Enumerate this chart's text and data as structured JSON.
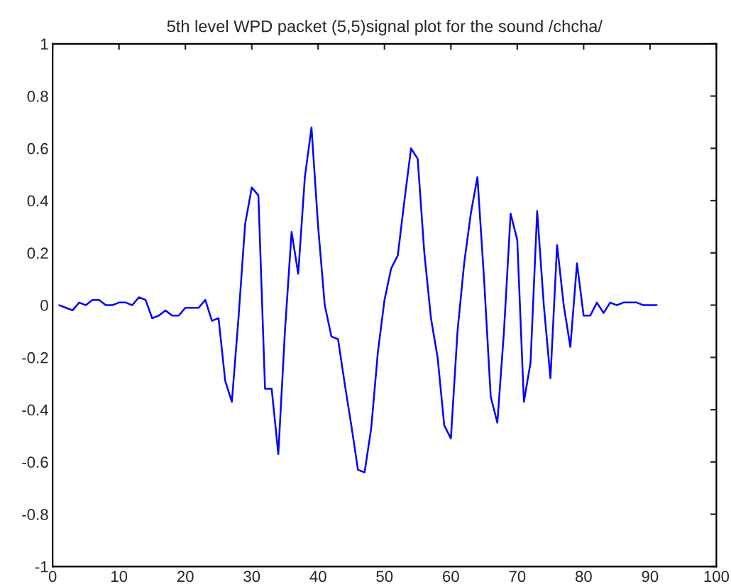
{
  "chart_data": {
    "type": "line",
    "title": "5th level WPD packet (5,5)signal plot for the sound /chcha/",
    "x": [
      1,
      2,
      3,
      4,
      5,
      6,
      7,
      8,
      9,
      10,
      11,
      12,
      13,
      14,
      15,
      16,
      17,
      18,
      19,
      20,
      21,
      22,
      23,
      24,
      25,
      26,
      27,
      28,
      29,
      30,
      31,
      32,
      33,
      34,
      35,
      36,
      37,
      38,
      39,
      40,
      41,
      42,
      43,
      44,
      45,
      46,
      47,
      48,
      49,
      50,
      51,
      52,
      53,
      54,
      55,
      56,
      57,
      58,
      59,
      60,
      61,
      62,
      63,
      64,
      65,
      66,
      67,
      68,
      69,
      70,
      71,
      72,
      73,
      74,
      75,
      76,
      77,
      78,
      79,
      80,
      81,
      82,
      83,
      84,
      85,
      86,
      87,
      88,
      89,
      90,
      91
    ],
    "series": [
      {
        "color": "#0000ff",
        "values": [
          0,
          -0.01,
          -0.02,
          0.01,
          0.0,
          0.02,
          0.02,
          0.0,
          0.0,
          0.01,
          0.01,
          0.0,
          0.03,
          0.02,
          -0.05,
          -0.04,
          -0.02,
          -0.04,
          -0.04,
          -0.01,
          -0.01,
          -0.01,
          0.02,
          -0.06,
          -0.05,
          -0.29,
          -0.37,
          -0.05,
          0.31,
          0.45,
          0.42,
          -0.32,
          -0.32,
          -0.57,
          -0.1,
          0.28,
          0.12,
          0.49,
          0.68,
          0.3,
          0.0,
          -0.12,
          -0.13,
          -0.3,
          -0.46,
          -0.63,
          -0.64,
          -0.47,
          -0.18,
          0.02,
          0.14,
          0.19,
          0.4,
          0.6,
          0.56,
          0.2,
          -0.05,
          -0.2,
          -0.46,
          -0.51,
          -0.1,
          0.16,
          0.35,
          0.49,
          0.1,
          -0.35,
          -0.45,
          -0.1,
          0.35,
          0.25,
          -0.37,
          -0.22,
          0.36,
          0.0,
          -0.28,
          0.23,
          0.0,
          -0.16,
          0.16,
          -0.04,
          -0.04,
          0.01,
          -0.03,
          0.01,
          0.0,
          0.01,
          0.01,
          0.01,
          0.0,
          0.0,
          0.0
        ]
      }
    ],
    "xlim": [
      0,
      100
    ],
    "xticks": [
      0,
      10,
      20,
      30,
      40,
      50,
      60,
      70,
      80,
      90,
      100
    ],
    "ylim": [
      -1,
      1
    ],
    "yticks": [
      -1,
      -0.8,
      -0.6,
      -0.4,
      -0.2,
      0,
      0.2,
      0.4,
      0.6,
      0.8,
      1
    ],
    "grid": false,
    "legend": false,
    "marker": "none",
    "line_style": "solid"
  }
}
